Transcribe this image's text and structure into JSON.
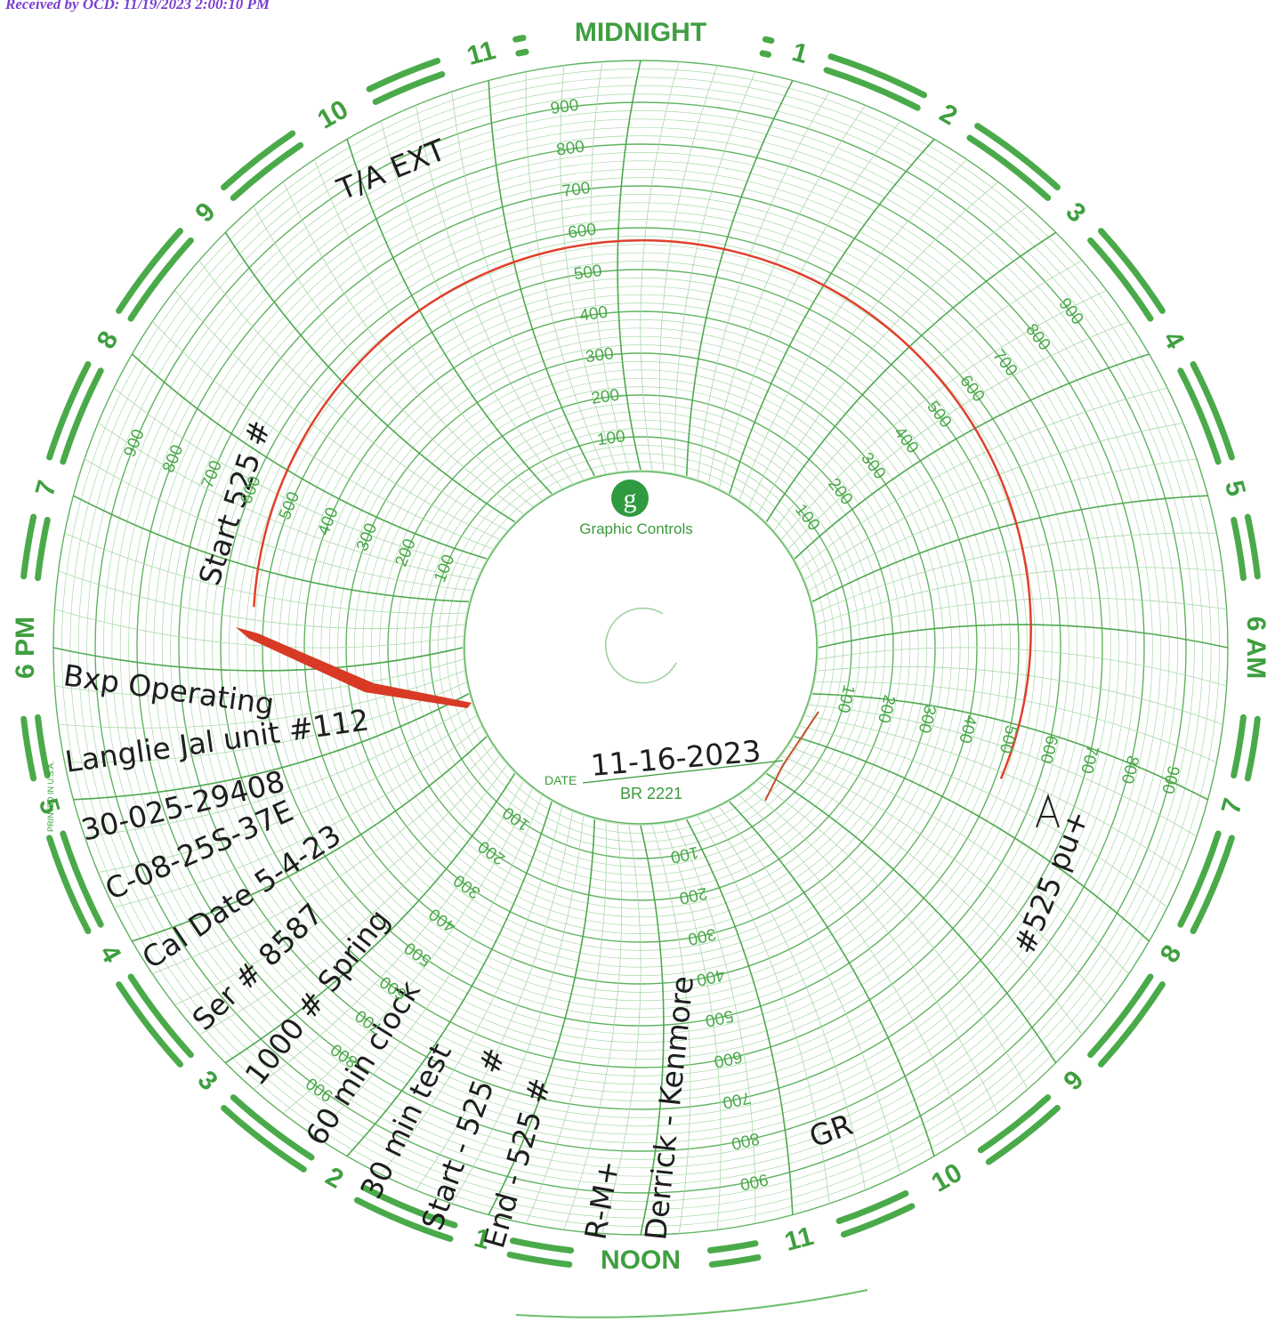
{
  "header": {
    "received": "Received by OCD: 11/19/2023 2:00:10 PM"
  },
  "chart_paper": {
    "hour_labels": [
      "MIDNIGHT",
      "1",
      "2",
      "3",
      "4",
      "5",
      "6 AM",
      "7",
      "8",
      "9",
      "10",
      "11",
      "NOON",
      "1",
      "2",
      "3",
      "4",
      "5",
      "6 PM",
      "7",
      "8",
      "9",
      "10",
      "11"
    ],
    "scale_labels": [
      "100",
      "200",
      "300",
      "400",
      "500",
      "600",
      "700",
      "800",
      "900"
    ],
    "logo": "g",
    "brand": "Graphic Controls",
    "date_label": "DATE",
    "chart_number": "BR 2221",
    "printed_in": "PRINTED IN U.S.A."
  },
  "handwriting": {
    "title": "T/A EXT",
    "start_reading": "Start 525 #",
    "date": "11-16-2023",
    "notes": [
      "Bxp Operating",
      "Langlie Jal unit #112",
      "30-025-29408",
      "C-08-25S-37E",
      "Cal Date 5-4-23",
      "Ser # 8587",
      "1000 # Spring",
      "60 min clock",
      "30 min test",
      "Start - 525 #",
      "End - 525 #",
      "R-M+",
      "Derrick - Kenmore"
    ],
    "end_note": "#525 pu+",
    "initials": "GR"
  }
}
